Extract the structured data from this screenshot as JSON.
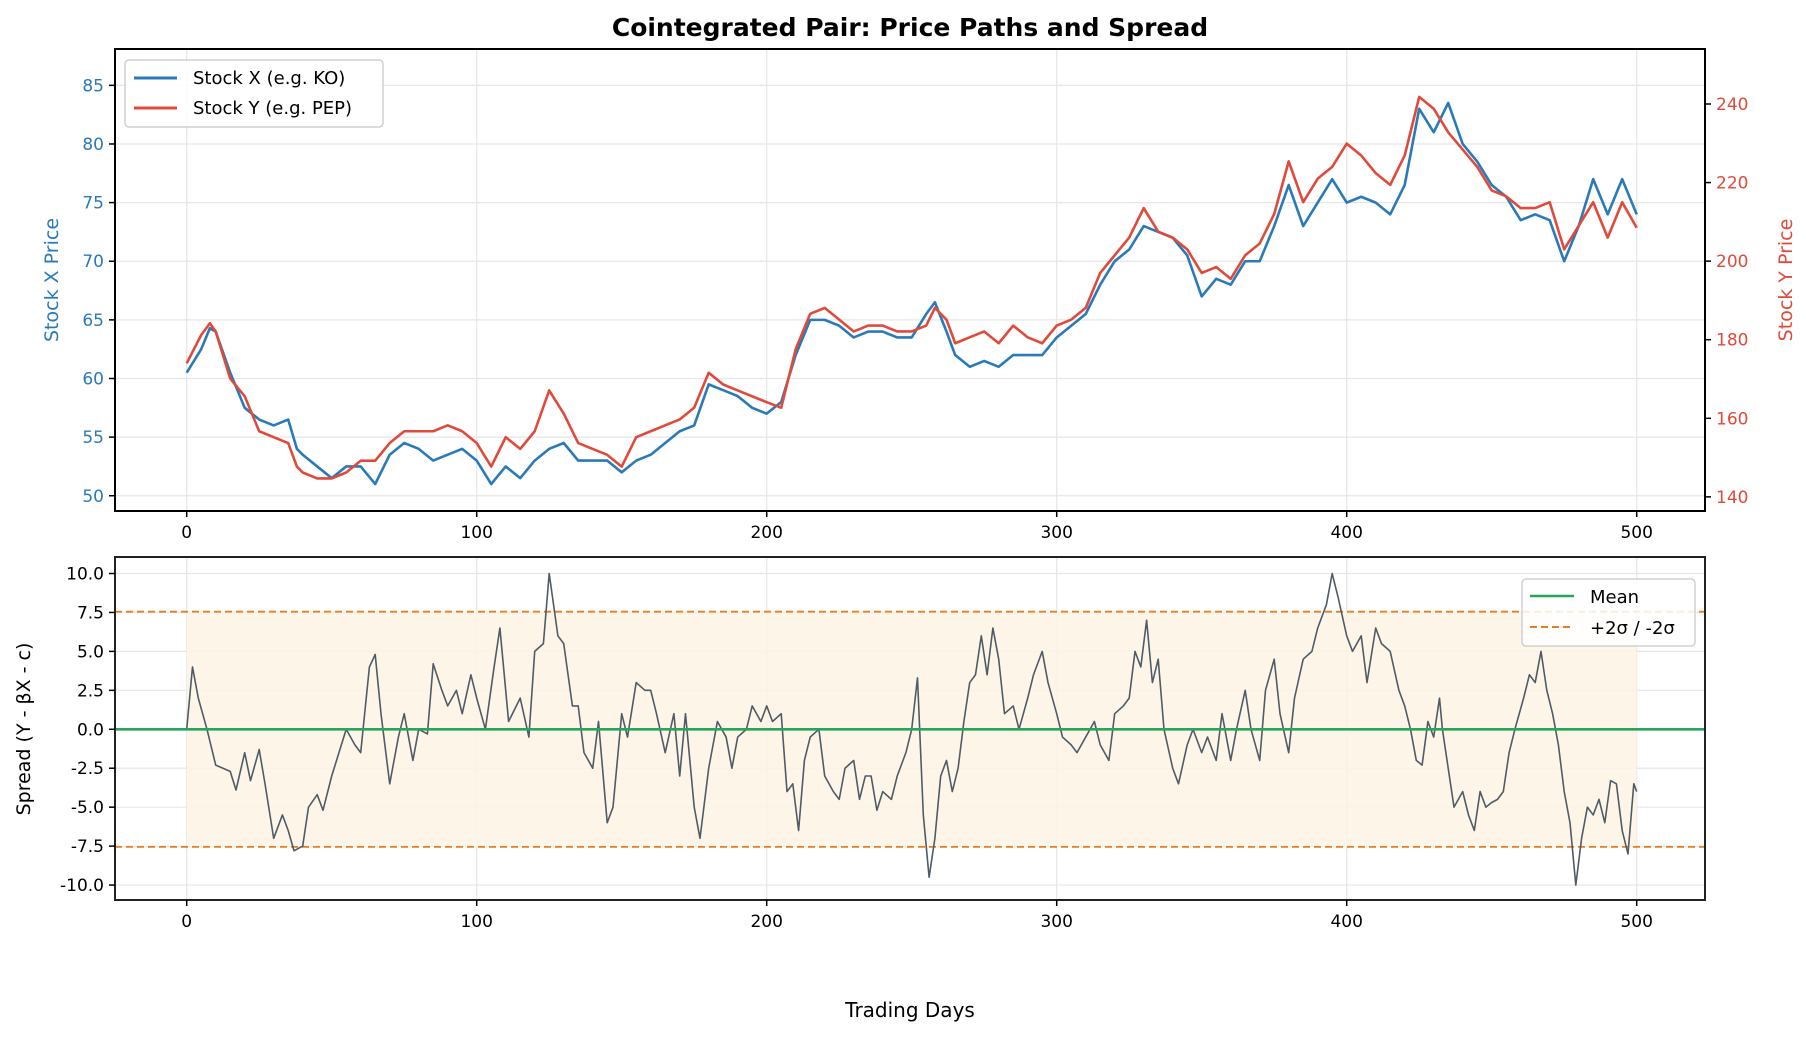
{
  "chart_data": [
    {
      "type": "line",
      "title": "Cointegrated Pair: Price Paths and Spread",
      "xlabel": "",
      "ylabel": "Stock X Price",
      "ylabel_right": "Stock Y Price",
      "xlim": [
        -25,
        525
      ],
      "ylim": [
        48.7,
        88.1
      ],
      "ylim_right": [
        136.4,
        254
      ],
      "xticks": [
        "0",
        "100",
        "200",
        "300",
        "400",
        "500"
      ],
      "yticks": [
        "50",
        "55",
        "60",
        "65",
        "70",
        "75",
        "80",
        "85"
      ],
      "yticks_right": [
        "140",
        "160",
        "180",
        "200",
        "220",
        "240"
      ],
      "grid": true,
      "legend_position": "top-left",
      "colors": {
        "x": "#2a7ab9",
        "y": "#e04a3b"
      },
      "x": [
        0,
        5,
        8,
        10,
        15,
        20,
        25,
        30,
        35,
        38,
        40,
        45,
        50,
        55,
        60,
        65,
        70,
        75,
        80,
        85,
        90,
        95,
        100,
        105,
        110,
        115,
        120,
        125,
        130,
        135,
        140,
        145,
        150,
        155,
        160,
        165,
        170,
        175,
        180,
        185,
        190,
        195,
        200,
        205,
        210,
        215,
        220,
        225,
        230,
        235,
        240,
        245,
        250,
        255,
        258,
        262,
        265,
        270,
        275,
        280,
        285,
        290,
        295,
        300,
        305,
        310,
        315,
        320,
        325,
        330,
        335,
        340,
        345,
        350,
        355,
        360,
        365,
        370,
        375,
        380,
        385,
        390,
        395,
        400,
        405,
        410,
        415,
        420,
        425,
        430,
        435,
        440,
        445,
        450,
        455,
        460,
        465,
        470,
        475,
        480,
        485,
        490,
        495,
        500
      ],
      "series": [
        {
          "name": "Stock X (e.g. KO)",
          "axis": "left",
          "values": [
            60.5,
            62.5,
            64.3,
            64,
            60.5,
            57.5,
            56.5,
            56,
            56.5,
            54,
            53.5,
            52.5,
            51.5,
            52.5,
            52.5,
            51,
            53.5,
            54.5,
            54,
            53,
            53.5,
            54,
            53,
            51,
            52.5,
            51.5,
            53,
            54,
            54.5,
            53,
            53,
            53,
            52,
            53,
            53.5,
            54.5,
            55.5,
            56,
            59.5,
            59,
            58.5,
            57.5,
            57,
            58,
            62,
            65,
            65,
            64.5,
            63.5,
            64,
            64,
            63.5,
            63.5,
            65.5,
            66.5,
            64,
            62,
            61,
            61.5,
            61,
            62,
            62,
            62,
            63.5,
            64.5,
            65.5,
            68,
            70,
            71,
            73,
            72.5,
            72,
            70.5,
            67,
            68.5,
            68,
            70,
            70,
            73,
            76.5,
            73,
            75,
            77,
            75,
            75.5,
            75,
            74,
            76.5,
            83,
            81,
            83.5,
            80,
            78.5,
            76.5,
            75.5,
            73.5,
            74,
            73.5,
            70,
            73,
            77,
            74,
            77,
            74
          ]
        },
        {
          "name": "Stock Y (e.g. PEP)",
          "axis": "right",
          "values": [
            174,
            181.2,
            184.2,
            182.1,
            170.1,
            165.6,
            156.7,
            155.2,
            153.7,
            147.7,
            146.2,
            144.7,
            144.7,
            146.2,
            149.2,
            149.2,
            153.7,
            156.7,
            156.7,
            156.7,
            158.2,
            156.7,
            153.7,
            147.7,
            155.2,
            152.2,
            156.7,
            167.1,
            161.2,
            153.7,
            152.2,
            150.7,
            147.7,
            155.2,
            156.7,
            158.2,
            159.7,
            162.7,
            171.6,
            168.6,
            167.1,
            165.6,
            164.1,
            162.7,
            177.6,
            186.6,
            188.1,
            185.1,
            182.1,
            183.6,
            183.6,
            182.1,
            182.1,
            183.6,
            188.1,
            185.1,
            179.1,
            180.6,
            182.1,
            179.1,
            183.6,
            180.6,
            179.1,
            183.6,
            185.1,
            188.1,
            197,
            201.5,
            206,
            213.5,
            207.5,
            206,
            203,
            197,
            198.5,
            195.5,
            201.5,
            204.5,
            212,
            225.4,
            215,
            221,
            224,
            229.9,
            226.9,
            222.4,
            219.4,
            226.9,
            241.8,
            238.8,
            232.8,
            228.4,
            224,
            218,
            216.5,
            213.5,
            213.5,
            215,
            203,
            209,
            215,
            206,
            215,
            208.5
          ]
        }
      ]
    },
    {
      "type": "line",
      "title": "",
      "xlabel": "Trading Days",
      "ylabel": "Spread (Y - βX - c)",
      "xlim": [
        -25,
        525
      ],
      "ylim": [
        -10.96,
        11.06
      ],
      "xticks": [
        "0",
        "100",
        "200",
        "300",
        "400",
        "500"
      ],
      "yticks": [
        "-10.0",
        "-7.5",
        "-5.0",
        "-2.5",
        "0.0",
        "2.5",
        "5.0",
        "7.5",
        "10.0"
      ],
      "grid": true,
      "legend_position": "top-right",
      "mean": 0,
      "upper_band": 7.55,
      "lower_band": -7.55,
      "band_x_range": [
        0,
        500
      ],
      "legend": [
        "Mean",
        "+2σ / -2σ"
      ],
      "colors": {
        "spread": "#4f5b66",
        "mean": "#27a55a",
        "band": "#e67e22",
        "fill": "#fdf4e4"
      },
      "spread_x": [
        0,
        2,
        4,
        7,
        10,
        15,
        17,
        20,
        22,
        25,
        27,
        30,
        33,
        35,
        37,
        40,
        42,
        45,
        47,
        50,
        55,
        58,
        60,
        63,
        65,
        67,
        70,
        73,
        75,
        78,
        80,
        83,
        85,
        88,
        90,
        93,
        95,
        98,
        100,
        103,
        106,
        108,
        111,
        115,
        118,
        120,
        123,
        125,
        128,
        130,
        133,
        135,
        137,
        140,
        142,
        145,
        147,
        150,
        152,
        155,
        158,
        160,
        162,
        165,
        168,
        170,
        172,
        175,
        177,
        180,
        183,
        186,
        188,
        190,
        193,
        195,
        198,
        200,
        202,
        205,
        207,
        209,
        211,
        213,
        215,
        218,
        220,
        223,
        225,
        227,
        230,
        232,
        234,
        236,
        238,
        240,
        243,
        245,
        248,
        250,
        252,
        254,
        256,
        258,
        260,
        262,
        264,
        266,
        268,
        270,
        272,
        274,
        276,
        278,
        280,
        282,
        285,
        287,
        290,
        292,
        295,
        297,
        300,
        302,
        305,
        307,
        310,
        313,
        315,
        318,
        320,
        323,
        325,
        327,
        329,
        331,
        333,
        335,
        337,
        340,
        342,
        345,
        347,
        350,
        352,
        355,
        357,
        360,
        362,
        365,
        367,
        370,
        372,
        375,
        377,
        380,
        382,
        385,
        388,
        390,
        393,
        395,
        397,
        400,
        402,
        405,
        407,
        410,
        412,
        415,
        418,
        420,
        422,
        424,
        426,
        428,
        430,
        432,
        433,
        435,
        437,
        440,
        442,
        444,
        446,
        448,
        450,
        452,
        454,
        456,
        458,
        461,
        463,
        465,
        467,
        469,
        471,
        473,
        475,
        477,
        479,
        481,
        483,
        485,
        487,
        489,
        491,
        493,
        495,
        497,
        499,
        500
      ],
      "spread_values": [
        0,
        4,
        2,
        0,
        -2.3,
        -2.7,
        -3.9,
        -1.5,
        -3.3,
        -1.3,
        -3.5,
        -7,
        -5.5,
        -6.5,
        -7.8,
        -7.5,
        -5,
        -4.2,
        -5.2,
        -3,
        0,
        -1,
        -1.5,
        4,
        4.8,
        1,
        -3.5,
        -0.5,
        1,
        -2,
        0,
        -0.3,
        4.2,
        2.5,
        1.5,
        2.5,
        1,
        3.5,
        2,
        0,
        4,
        6.5,
        0.5,
        2,
        -0.5,
        5,
        5.5,
        10,
        6,
        5.5,
        1.5,
        1.5,
        -1.5,
        -2.5,
        0.5,
        -6,
        -5,
        1,
        -0.5,
        3,
        2.5,
        2.5,
        1,
        -1.5,
        1,
        -3,
        1,
        -5,
        -7,
        -2.5,
        0.5,
        -0.5,
        -2.5,
        -0.5,
        0,
        1.5,
        0.5,
        1.5,
        0.5,
        1,
        -4,
        -3.5,
        -6.5,
        -2,
        -0.5,
        0,
        -3,
        -4,
        -4.5,
        -2.5,
        -2,
        -4.5,
        -3,
        -3,
        -5.2,
        -4,
        -4.5,
        -3,
        -1.5,
        0,
        3.3,
        -5.5,
        -9.5,
        -7,
        -3,
        -2,
        -4,
        -2.5,
        0.5,
        3,
        3.5,
        6,
        3.5,
        6.5,
        4.5,
        1,
        1.5,
        0,
        2,
        3.5,
        5,
        3,
        1,
        -0.5,
        -1,
        -1.5,
        -0.5,
        0.5,
        -1,
        -2,
        1,
        1.5,
        2,
        5,
        4,
        7,
        3,
        4.5,
        0,
        -2.5,
        -3.5,
        -1,
        0,
        -1.5,
        -0.5,
        -2,
        1,
        -2,
        0,
        2.5,
        0,
        -2,
        2.5,
        4.5,
        1,
        -1.5,
        2,
        4.5,
        5,
        6.5,
        8,
        10,
        8.5,
        6,
        5,
        6,
        3,
        6.5,
        5.5,
        5,
        2.5,
        1.5,
        0,
        -2,
        -2.3,
        0.5,
        -0.5,
        2,
        0,
        -2.5,
        -5,
        -4,
        -5.5,
        -6.5,
        -4,
        -5,
        -4.7,
        -4.5,
        -4,
        -1.5,
        0,
        2,
        3.5,
        3,
        5,
        2.5,
        1,
        -1,
        -4,
        -6,
        -10,
        -7,
        -5,
        -5.5,
        -4.5,
        -6,
        -3.3,
        -3.5,
        -6.5,
        -8,
        -3.5,
        -4
      ]
    }
  ]
}
